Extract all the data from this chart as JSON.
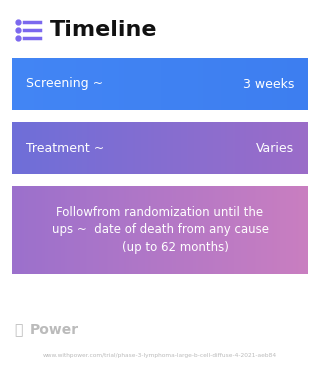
{
  "title": "Timeline",
  "background_color": "#ffffff",
  "title_color": "#111111",
  "title_fontsize": 16,
  "icon_color": "#7b68ee",
  "boxes": [
    {
      "label_left": "Screening ~",
      "label_right": "3 weeks",
      "color_left": "#4285f4",
      "color_right": "#3d7ef0",
      "text_color": "#ffffff",
      "multiline": false
    },
    {
      "label_left": "Treatment ~",
      "label_right": "Varies",
      "color_left": "#6e6ed8",
      "color_right": "#9b6cc8",
      "text_color": "#ffffff",
      "multiline": false
    },
    {
      "label_left": "Followfrom randomization until the\nups ~  date of death from any cause\n        (up to 62 months)",
      "label_right": "",
      "color_left": "#9b70cc",
      "color_right": "#c97ec0",
      "text_color": "#ffffff",
      "multiline": true
    }
  ],
  "footer_logo_text": "Power",
  "footer_url": "www.withpower.com/trial/phase-3-lymphoma-large-b-cell-diffuse-4-2021-aeb84",
  "footer_color": "#bbbbbb"
}
